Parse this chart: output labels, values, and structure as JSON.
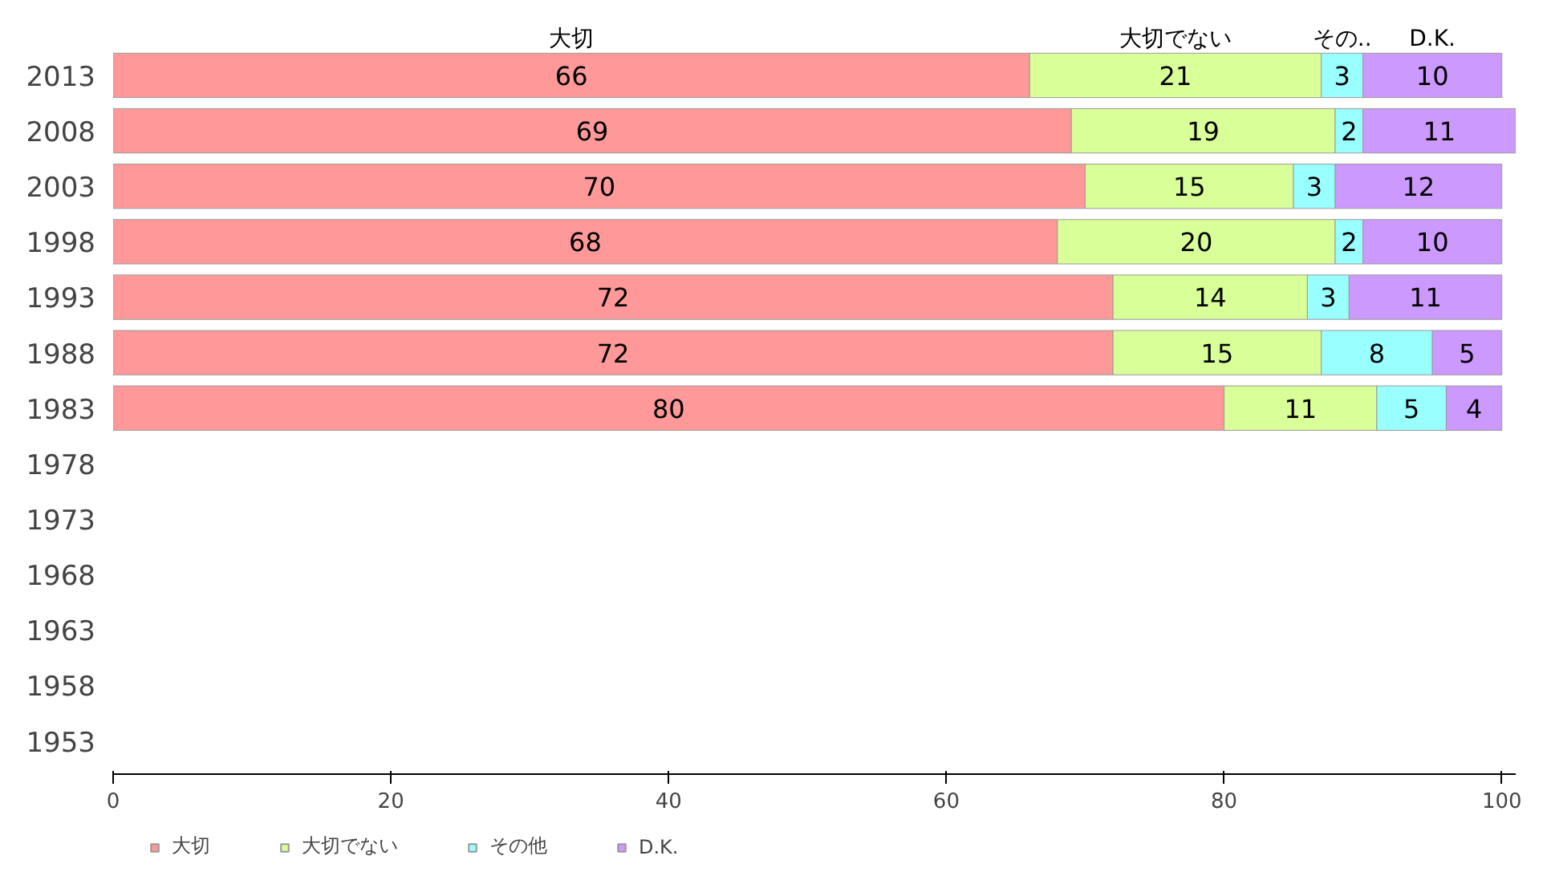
{
  "chart_data": {
    "type": "bar",
    "orientation": "horizontal",
    "stacked": true,
    "data_labels": true,
    "categories": [
      "2013",
      "2008",
      "2003",
      "1998",
      "1993",
      "1988",
      "1983",
      "1978",
      "1973",
      "1968",
      "1963",
      "1958",
      "1953"
    ],
    "series": [
      {
        "name": "大切",
        "color": "#ff9999",
        "values": [
          66,
          69,
          70,
          68,
          72,
          72,
          80,
          null,
          null,
          null,
          null,
          null,
          null
        ]
      },
      {
        "name": "大切でない",
        "color": "#d9ff99",
        "values": [
          21,
          19,
          15,
          20,
          14,
          15,
          11,
          null,
          null,
          null,
          null,
          null,
          null
        ]
      },
      {
        "name": "その他",
        "color": "#99ffff",
        "values": [
          3,
          2,
          3,
          2,
          3,
          8,
          5,
          null,
          null,
          null,
          null,
          null,
          null
        ]
      },
      {
        "name": "D.K.",
        "color": "#cc99ff",
        "values": [
          10,
          11,
          12,
          10,
          11,
          5,
          4,
          null,
          null,
          null,
          null,
          null,
          null
        ]
      }
    ],
    "annotations": [
      "大切",
      "大切でない",
      "その..",
      "D.K."
    ],
    "xlim": [
      0,
      101
    ],
    "xticks": [
      0,
      20,
      40,
      60,
      80,
      100
    ],
    "grid": false,
    "legend": "bottom left"
  }
}
